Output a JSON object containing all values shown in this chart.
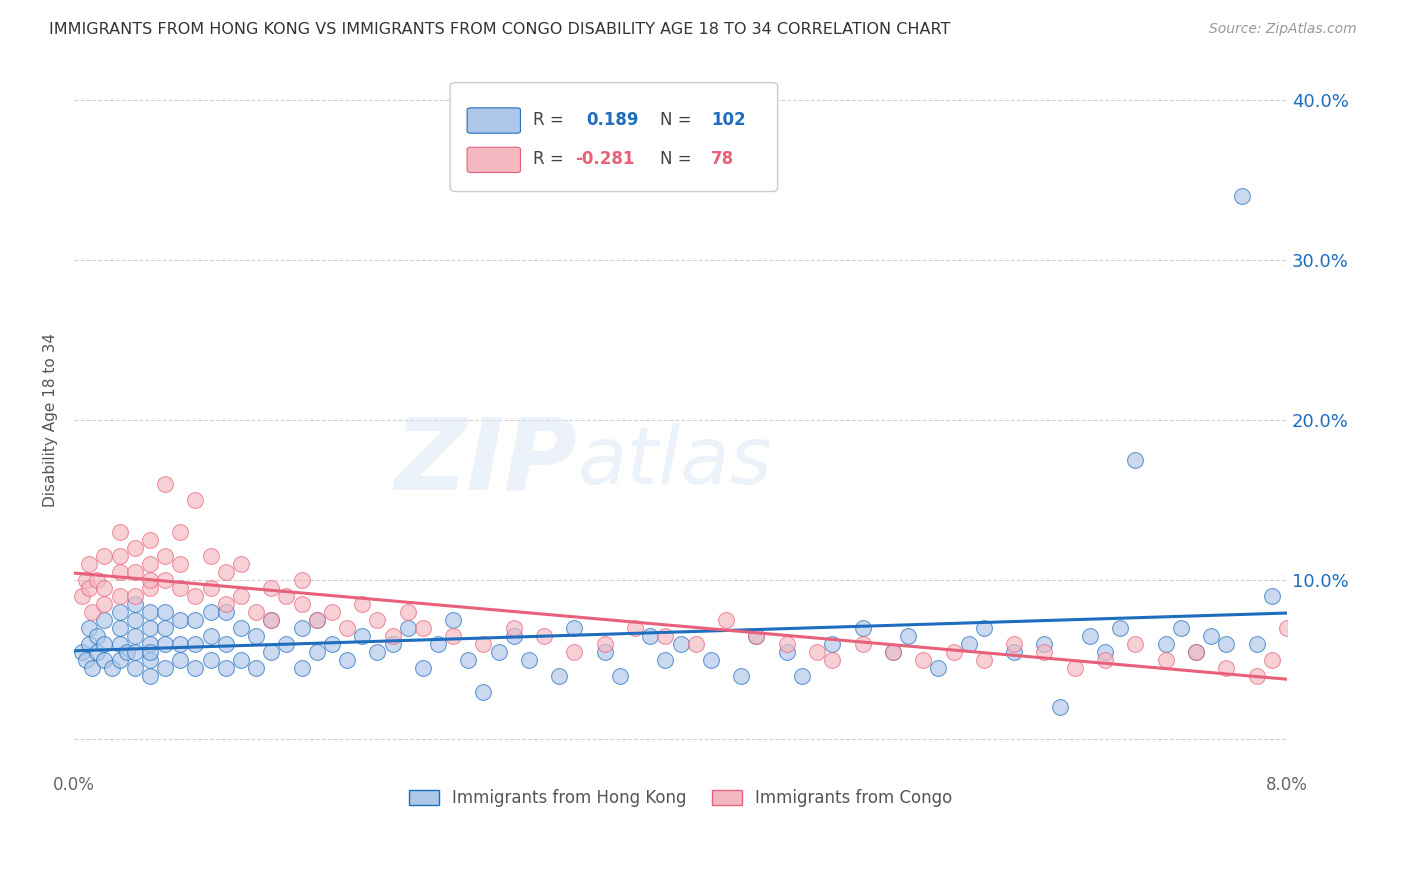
{
  "title": "IMMIGRANTS FROM HONG KONG VS IMMIGRANTS FROM CONGO DISABILITY AGE 18 TO 34 CORRELATION CHART",
  "source": "Source: ZipAtlas.com",
  "ylabel": "Disability Age 18 to 34",
  "xmin": 0.0,
  "xmax": 0.08,
  "ymin": -0.02,
  "ymax": 0.42,
  "ytick_positions": [
    0.0,
    0.1,
    0.2,
    0.3,
    0.4
  ],
  "ytick_labels_right": [
    "",
    "10.0%",
    "20.0%",
    "30.0%",
    "40.0%"
  ],
  "hk_color": "#aec6e8",
  "congo_color": "#f4b8c1",
  "hk_line_color": "#1f6dbf",
  "congo_line_color": "#e8607a",
  "hk_R": 0.189,
  "hk_N": 102,
  "congo_R": -0.281,
  "congo_N": 78,
  "legend_label_hk": "Immigrants from Hong Kong",
  "legend_label_congo": "Immigrants from Congo",
  "watermark_zip": "ZIP",
  "watermark_atlas": "atlas",
  "background_color": "#ffffff",
  "grid_color": "#cccccc",
  "hk_scatter_x": [
    0.0005,
    0.0008,
    0.001,
    0.001,
    0.0012,
    0.0015,
    0.0015,
    0.002,
    0.002,
    0.002,
    0.0025,
    0.003,
    0.003,
    0.003,
    0.003,
    0.0035,
    0.004,
    0.004,
    0.004,
    0.004,
    0.004,
    0.005,
    0.005,
    0.005,
    0.005,
    0.005,
    0.005,
    0.006,
    0.006,
    0.006,
    0.006,
    0.007,
    0.007,
    0.007,
    0.008,
    0.008,
    0.008,
    0.009,
    0.009,
    0.009,
    0.01,
    0.01,
    0.01,
    0.011,
    0.011,
    0.012,
    0.012,
    0.013,
    0.013,
    0.014,
    0.015,
    0.015,
    0.016,
    0.016,
    0.017,
    0.018,
    0.019,
    0.02,
    0.021,
    0.022,
    0.023,
    0.024,
    0.025,
    0.026,
    0.027,
    0.028,
    0.029,
    0.03,
    0.032,
    0.033,
    0.035,
    0.036,
    0.038,
    0.039,
    0.04,
    0.042,
    0.044,
    0.045,
    0.047,
    0.048,
    0.05,
    0.052,
    0.054,
    0.055,
    0.057,
    0.059,
    0.06,
    0.062,
    0.064,
    0.065,
    0.067,
    0.068,
    0.069,
    0.07,
    0.072,
    0.073,
    0.074,
    0.075,
    0.076,
    0.077,
    0.078,
    0.079
  ],
  "hk_scatter_y": [
    0.055,
    0.05,
    0.06,
    0.07,
    0.045,
    0.055,
    0.065,
    0.05,
    0.06,
    0.075,
    0.045,
    0.05,
    0.06,
    0.07,
    0.08,
    0.055,
    0.045,
    0.055,
    0.065,
    0.075,
    0.085,
    0.04,
    0.05,
    0.06,
    0.07,
    0.08,
    0.055,
    0.045,
    0.06,
    0.07,
    0.08,
    0.05,
    0.06,
    0.075,
    0.045,
    0.06,
    0.075,
    0.05,
    0.065,
    0.08,
    0.045,
    0.06,
    0.08,
    0.05,
    0.07,
    0.045,
    0.065,
    0.055,
    0.075,
    0.06,
    0.045,
    0.07,
    0.055,
    0.075,
    0.06,
    0.05,
    0.065,
    0.055,
    0.06,
    0.07,
    0.045,
    0.06,
    0.075,
    0.05,
    0.03,
    0.055,
    0.065,
    0.05,
    0.04,
    0.07,
    0.055,
    0.04,
    0.065,
    0.05,
    0.06,
    0.05,
    0.04,
    0.065,
    0.055,
    0.04,
    0.06,
    0.07,
    0.055,
    0.065,
    0.045,
    0.06,
    0.07,
    0.055,
    0.06,
    0.02,
    0.065,
    0.055,
    0.07,
    0.175,
    0.06,
    0.07,
    0.055,
    0.065,
    0.06,
    0.34,
    0.06,
    0.09
  ],
  "congo_scatter_x": [
    0.0005,
    0.0008,
    0.001,
    0.001,
    0.0012,
    0.0015,
    0.002,
    0.002,
    0.002,
    0.003,
    0.003,
    0.003,
    0.003,
    0.004,
    0.004,
    0.004,
    0.005,
    0.005,
    0.005,
    0.005,
    0.006,
    0.006,
    0.006,
    0.007,
    0.007,
    0.007,
    0.008,
    0.008,
    0.009,
    0.009,
    0.01,
    0.01,
    0.011,
    0.011,
    0.012,
    0.013,
    0.013,
    0.014,
    0.015,
    0.015,
    0.016,
    0.017,
    0.018,
    0.019,
    0.02,
    0.021,
    0.022,
    0.023,
    0.025,
    0.027,
    0.029,
    0.031,
    0.033,
    0.035,
    0.037,
    0.039,
    0.041,
    0.043,
    0.045,
    0.047,
    0.049,
    0.05,
    0.052,
    0.054,
    0.056,
    0.058,
    0.06,
    0.062,
    0.064,
    0.066,
    0.068,
    0.07,
    0.072,
    0.074,
    0.076,
    0.078,
    0.079,
    0.08
  ],
  "congo_scatter_y": [
    0.09,
    0.1,
    0.095,
    0.11,
    0.08,
    0.1,
    0.095,
    0.115,
    0.085,
    0.09,
    0.105,
    0.115,
    0.13,
    0.09,
    0.105,
    0.12,
    0.095,
    0.11,
    0.1,
    0.125,
    0.1,
    0.115,
    0.16,
    0.095,
    0.11,
    0.13,
    0.09,
    0.15,
    0.095,
    0.115,
    0.085,
    0.105,
    0.09,
    0.11,
    0.08,
    0.095,
    0.075,
    0.09,
    0.085,
    0.1,
    0.075,
    0.08,
    0.07,
    0.085,
    0.075,
    0.065,
    0.08,
    0.07,
    0.065,
    0.06,
    0.07,
    0.065,
    0.055,
    0.06,
    0.07,
    0.065,
    0.06,
    0.075,
    0.065,
    0.06,
    0.055,
    0.05,
    0.06,
    0.055,
    0.05,
    0.055,
    0.05,
    0.06,
    0.055,
    0.045,
    0.05,
    0.06,
    0.05,
    0.055,
    0.045,
    0.04,
    0.05,
    0.07
  ]
}
